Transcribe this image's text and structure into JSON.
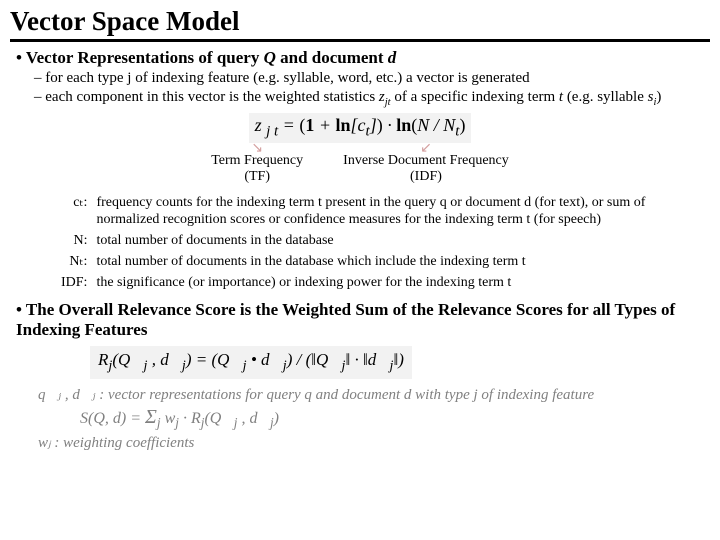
{
  "title": "Vector Space Model",
  "bullet1": "Vector Representations of query Q and document d",
  "sub1": "for each type j of indexing feature (e.g. syllable, word, etc.) a vector is generated",
  "sub2": "each component in this vector is the weighted statistics zⱼₜ of a specific indexing term t (e.g. syllable sᵢ)",
  "formula1": "z ⱼₜ = (1 + ln[cₜ]) · ln(N / Nₜ)",
  "tf_label": "Term Frequency",
  "tf_sub": "(TF)",
  "idf_label": "Inverse Document Frequency",
  "idf_sub": "(IDF)",
  "defs": {
    "ct_key": "cₜ:",
    "ct": "frequency counts for the indexing term t present in the query q or document d (for text), or sum of normalized recognition scores or confidence measures for the indexing term t (for speech)",
    "N_key": "N:",
    "N": "total number of documents in the database",
    "Nt_key": "Nₜ:",
    "Nt": "total number of documents in the database which include the indexing term t",
    "IDF_key": "IDF:",
    "IDF": "the significance (or importance) or indexing power for the indexing term t"
  },
  "bullet2": "The Overall Relevance Score is the Weighted Sum of the Relevance Scores for all Types of Indexing Features",
  "formula2": "Rⱼ(Q⃗ⱼ , d⃗ⱼ) = (Q⃗ⱼ • d⃗ⱼ) / (‖Q⃗ⱼ‖ · ‖d⃗ⱼ‖)",
  "vecnote": "q⃗ⱼ , d⃗ⱼ : vector representations for query q and document d with type j of indexing feature",
  "sumline": "S(Q, d) = Σⱼ wⱼ · Rⱼ(Q⃗ⱼ , d⃗ⱼ)",
  "wjnote": "wⱼ : weighting coefficients",
  "colors": {
    "text": "#000000",
    "bg": "#ffffff",
    "gray_text": "#808080",
    "formula_bg": "#f2f2f2",
    "arrow": "#d4a0a0"
  },
  "fonts": {
    "title_size": 27,
    "bullet_size": 17,
    "sub_size": 15,
    "def_size": 14,
    "formula_size": 18
  }
}
